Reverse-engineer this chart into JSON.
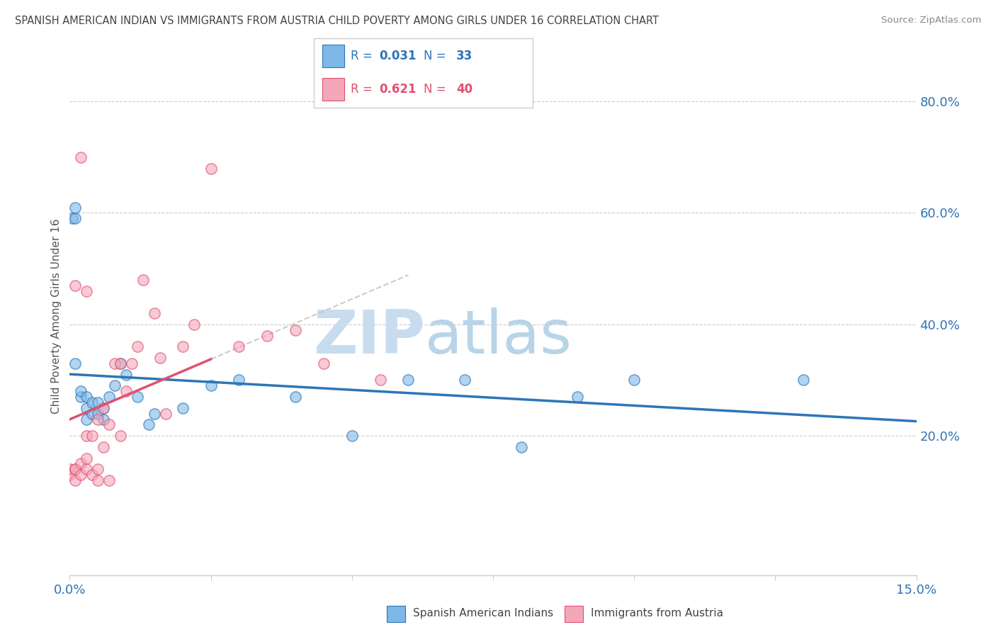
{
  "title": "SPANISH AMERICAN INDIAN VS IMMIGRANTS FROM AUSTRIA CHILD POVERTY AMONG GIRLS UNDER 16 CORRELATION CHART",
  "source": "Source: ZipAtlas.com",
  "ylabel": "Child Poverty Among Girls Under 16",
  "xlim": [
    0.0,
    0.15
  ],
  "ylim": [
    -0.05,
    0.88
  ],
  "xticks": [
    0.0,
    0.025,
    0.05,
    0.075,
    0.1,
    0.125,
    0.15
  ],
  "xticklabels": [
    "0.0%",
    "",
    "",
    "",
    "",
    "",
    "15.0%"
  ],
  "yticks_right": [
    0.2,
    0.4,
    0.6,
    0.8
  ],
  "ytick_right_labels": [
    "20.0%",
    "40.0%",
    "60.0%",
    "80.0%"
  ],
  "color_blue": "#7DB8E8",
  "color_pink": "#F4A7B9",
  "color_blue_line": "#2E75B6",
  "color_pink_line": "#E05070",
  "color_watermark_zip": "#C8DCEF",
  "color_watermark_atlas": "#B8D4E8",
  "series1_label": "Spanish American Indians",
  "series2_label": "Immigrants from Austria",
  "R1": "0.031",
  "N1": "33",
  "R2": "0.621",
  "N2": "40",
  "series1_x": [
    0.0005,
    0.001,
    0.001,
    0.002,
    0.002,
    0.003,
    0.003,
    0.003,
    0.004,
    0.004,
    0.005,
    0.005,
    0.006,
    0.006,
    0.007,
    0.008,
    0.009,
    0.01,
    0.012,
    0.014,
    0.015,
    0.02,
    0.025,
    0.03,
    0.04,
    0.05,
    0.06,
    0.07,
    0.08,
    0.09,
    0.1,
    0.13,
    0.001
  ],
  "series1_y": [
    0.59,
    0.59,
    0.61,
    0.27,
    0.28,
    0.23,
    0.25,
    0.27,
    0.24,
    0.26,
    0.24,
    0.26,
    0.23,
    0.25,
    0.27,
    0.29,
    0.33,
    0.31,
    0.27,
    0.22,
    0.24,
    0.25,
    0.29,
    0.3,
    0.27,
    0.2,
    0.3,
    0.3,
    0.18,
    0.27,
    0.3,
    0.3,
    0.33
  ],
  "series2_x": [
    0.0,
    0.0,
    0.001,
    0.001,
    0.001,
    0.002,
    0.002,
    0.002,
    0.003,
    0.003,
    0.003,
    0.003,
    0.004,
    0.004,
    0.005,
    0.005,
    0.005,
    0.006,
    0.006,
    0.007,
    0.007,
    0.008,
    0.009,
    0.009,
    0.01,
    0.011,
    0.012,
    0.013,
    0.015,
    0.016,
    0.017,
    0.02,
    0.022,
    0.025,
    0.03,
    0.035,
    0.04,
    0.045,
    0.055,
    0.001
  ],
  "series2_y": [
    0.13,
    0.14,
    0.12,
    0.14,
    0.14,
    0.13,
    0.15,
    0.7,
    0.14,
    0.16,
    0.2,
    0.46,
    0.13,
    0.2,
    0.12,
    0.14,
    0.23,
    0.18,
    0.25,
    0.12,
    0.22,
    0.33,
    0.2,
    0.33,
    0.28,
    0.33,
    0.36,
    0.48,
    0.42,
    0.34,
    0.24,
    0.36,
    0.4,
    0.68,
    0.36,
    0.38,
    0.39,
    0.33,
    0.3,
    0.47
  ]
}
